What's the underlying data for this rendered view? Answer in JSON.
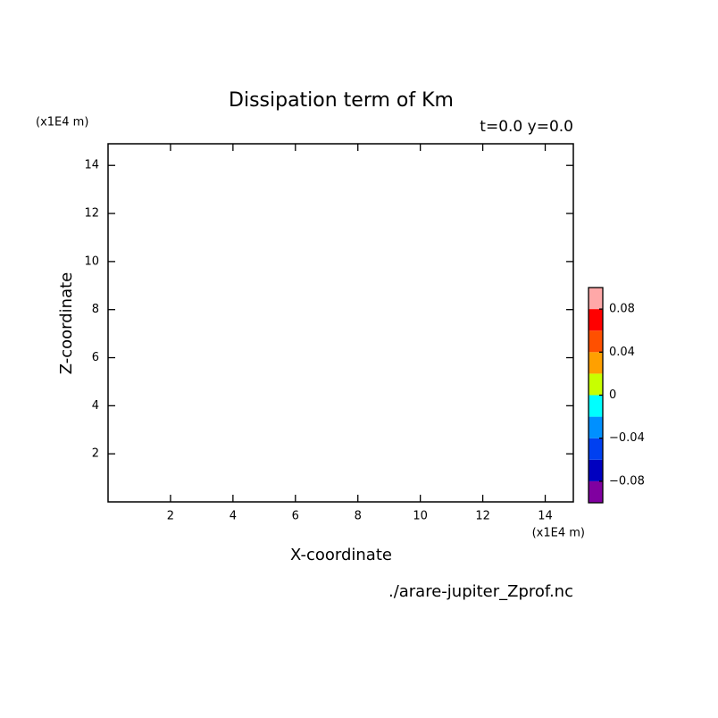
{
  "chart_data": {
    "type": "contour",
    "title": "Dissipation term of Km",
    "subtitle": "t=0.0 y=0.0",
    "xlabel": "X-coordinate",
    "ylabel": "Z-coordinate",
    "x_unit": "(x1E4 m)",
    "y_unit": "(x1E4 m)",
    "footnote": "./arare-jupiter_Zprof.nc",
    "xlim": [
      0,
      14.9
    ],
    "ylim": [
      0,
      14.9
    ],
    "xticks": [
      2,
      4,
      6,
      8,
      10,
      12,
      14
    ],
    "yticks": [
      2,
      4,
      6,
      8,
      10,
      12,
      14
    ],
    "colorbar": {
      "bounds": [
        -0.1,
        -0.08,
        -0.06,
        -0.04,
        -0.02,
        0,
        0.02,
        0.04,
        0.06,
        0.08,
        0.1
      ],
      "colors": [
        "#8000a0",
        "#0000c0",
        "#0040f0",
        "#0090ff",
        "#00ffff",
        "#c8ff00",
        "#ffa000",
        "#ff5000",
        "#ff0000",
        "#ffa8a8"
      ],
      "ticks": [
        {
          "value": -0.08,
          "label": "−0.08"
        },
        {
          "value": -0.04,
          "label": "−0.04"
        },
        0,
        0.04,
        0.08
      ]
    }
  }
}
